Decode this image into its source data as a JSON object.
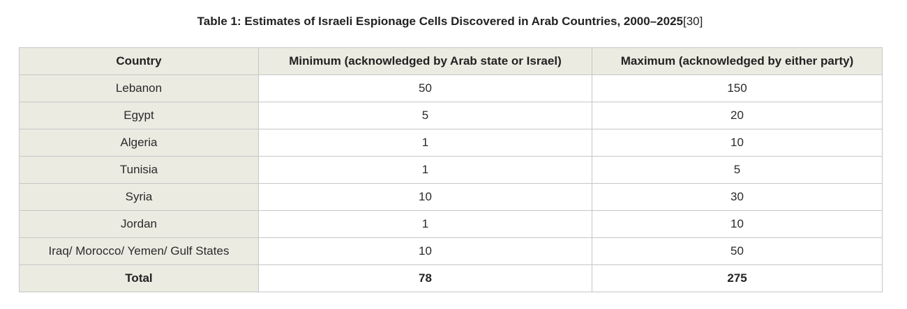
{
  "caption": {
    "title": "Table 1: Estimates of Israeli Espionage Cells Discovered in Arab Countries, 2000–2025",
    "reference": "[30]"
  },
  "table": {
    "headers": [
      "Country",
      "Minimum (acknowledged by Arab state or Israel)",
      "Maximum (acknowledged by either party)"
    ],
    "rows": [
      [
        "Lebanon",
        "50",
        "150"
      ],
      [
        "Egypt",
        "5",
        "20"
      ],
      [
        "Algeria",
        "1",
        "10"
      ],
      [
        "Tunisia",
        "1",
        "5"
      ],
      [
        "Syria",
        "10",
        "30"
      ],
      [
        "Jordan",
        "1",
        "10"
      ],
      [
        "Iraq/ Morocco/ Yemen/ Gulf States",
        "10",
        "50"
      ],
      [
        "Total",
        "78",
        "275"
      ]
    ]
  },
  "colors": {
    "header_background": "#ecebe2",
    "border": "#c6c6c6"
  }
}
